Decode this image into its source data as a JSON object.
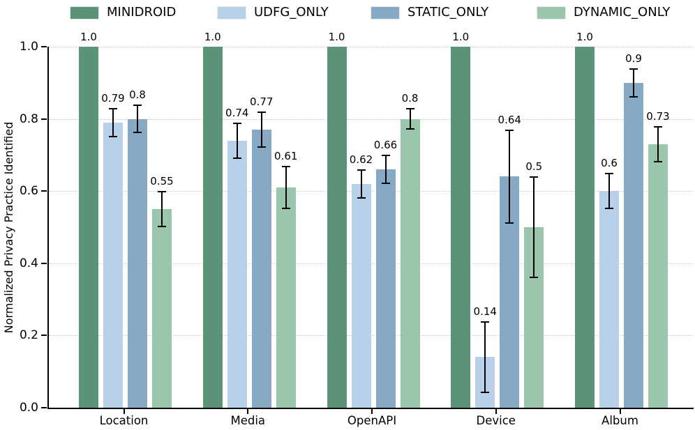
{
  "chart_data": {
    "type": "bar",
    "title": "",
    "xlabel": "",
    "ylabel": "Normalized Privacy Practice Identified",
    "ylim": [
      0.0,
      1.0
    ],
    "yticks": [
      0.0,
      0.2,
      0.4,
      0.6,
      0.8,
      1.0
    ],
    "grid": "horizontal dotted lines at each y tick",
    "legend_position": "top",
    "categories": [
      "Location",
      "Media",
      "OpenAPI",
      "Device",
      "Album"
    ],
    "series": [
      {
        "name": "MINIDROID",
        "color": "#5b9379",
        "values": [
          1.0,
          1.0,
          1.0,
          1.0,
          1.0
        ],
        "errors": [
          0,
          0,
          0,
          0,
          0
        ],
        "labels": [
          "1.0",
          "1.0",
          "1.0",
          "1.0",
          "1.0"
        ]
      },
      {
        "name": "UDFG_ONLY",
        "color": "#b8d1e9",
        "values": [
          0.79,
          0.74,
          0.62,
          0.14,
          0.6
        ],
        "errors": [
          0.04,
          0.05,
          0.04,
          0.1,
          0.05
        ],
        "labels": [
          "0.79",
          "0.74",
          "0.62",
          "0.14",
          "0.6"
        ]
      },
      {
        "name": "STATIC_ONLY",
        "color": "#86a9c6",
        "values": [
          0.8,
          0.77,
          0.66,
          0.64,
          0.9
        ],
        "errors": [
          0.04,
          0.05,
          0.04,
          0.13,
          0.04
        ],
        "labels": [
          "0.8",
          "0.77",
          "0.66",
          "0.64",
          "0.9"
        ]
      },
      {
        "name": "DYNAMIC_ONLY",
        "color": "#9ac6ab",
        "values": [
          0.55,
          0.61,
          0.8,
          0.5,
          0.73
        ],
        "errors": [
          0.05,
          0.06,
          0.03,
          0.14,
          0.05
        ],
        "labels": [
          "0.55",
          "0.61",
          "0.8",
          "0.5",
          "0.73"
        ]
      }
    ],
    "colors": {
      "axis": "#000000",
      "grid": "#c6c6c6",
      "error_bar": "#000000",
      "background": "#ffffff"
    }
  }
}
